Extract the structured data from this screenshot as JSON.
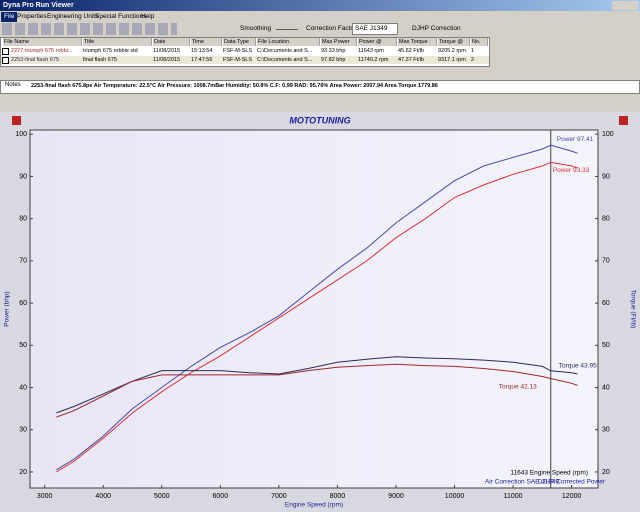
{
  "window": {
    "title": "Dyna Pro Run Viewer"
  },
  "menu": [
    "File",
    "Properties",
    "Engineering Units",
    "Special Functions",
    "Help"
  ],
  "toolbar": {
    "smoothing": "Smoothing",
    "correction_label": "Correction Factor",
    "correction_value": "SAE J1349",
    "djhp": "DJHP Correction"
  },
  "table": {
    "headers": [
      "File Name",
      "Title",
      "Date",
      "Time",
      "Data Type",
      "File Location",
      "Max Power",
      "Power @",
      "Max Torque",
      "Torque @",
      "No."
    ],
    "rows": [
      [
        "2227-triumph 675 robbi...",
        "triumph 675 robbie std",
        "11/08/2015",
        "15:13:54",
        "FSF-M-SLS",
        "C:\\Documents and S...",
        "93.33 bhp",
        "11643 rpm",
        "45.82 Ft/lb",
        "9205.2 rpm",
        "1"
      ],
      [
        "2253-final flash 675",
        "final flash 675",
        "11/08/2015",
        "17:47:56",
        "FSF-M-SLS",
        "C:\\Documents and S...",
        "97.82 bhp",
        "11740.2 rpm",
        "47.37 Ft/lb",
        "9317.1 rpm",
        "2"
      ]
    ]
  },
  "notes": {
    "label": "Notes",
    "info": "2253-final flash 675.8pe   Air Temperature: 22.5°C   Air Pressure: 1008.7mBar   Humidity: 50.8%   C.F: 0.99   RAD: 95.76%   Area Power: 2007.94   Area Torque 1779.86"
  },
  "chart_data": {
    "type": "line",
    "title": "MOTOTUNING",
    "xlabel": "Engine Speed (rpm)",
    "ylabel": "Power (bhp)",
    "y2label": "Torque (Ft/lb)",
    "x": [
      3200,
      3500,
      4000,
      4500,
      5000,
      5500,
      6000,
      6500,
      7000,
      7500,
      8000,
      8500,
      9000,
      9500,
      10000,
      10500,
      11000,
      11500,
      11643,
      12000,
      12100
    ],
    "xlim": [
      2750,
      12450
    ],
    "ylim": [
      16.2,
      101
    ],
    "y2lim": [
      16.2,
      101
    ],
    "xticks": [
      3000,
      4000,
      5000,
      6000,
      7000,
      8000,
      9000,
      10000,
      11000,
      12000
    ],
    "yticks": [
      20,
      30,
      40,
      50,
      60,
      70,
      80,
      90,
      100
    ],
    "y2ticks": [
      20,
      30,
      40,
      50,
      60,
      70,
      80,
      90,
      100
    ],
    "cursor": 11643,
    "series": [
      {
        "name": "Power 97.41",
        "color": "#4a4aa8",
        "values": [
          20.5,
          23,
          28.5,
          35,
          40,
          45,
          49.5,
          53,
          57,
          62.5,
          68,
          73,
          79,
          84,
          89,
          92.5,
          94.5,
          96.5,
          97.41,
          96,
          95.5
        ]
      },
      {
        "name": "Power 93.33",
        "color": "#e03030",
        "values": [
          20,
          22.5,
          28,
          34,
          39,
          43.5,
          47.5,
          52,
          56.5,
          61,
          65.5,
          70,
          75.5,
          80,
          85,
          88,
          90.5,
          92.5,
          93.33,
          92.5,
          92
        ]
      },
      {
        "name": "Torque 43.95",
        "color": "#2a2a5a",
        "axis": "y2",
        "values": [
          34,
          35.5,
          38.5,
          41.5,
          44,
          44,
          44,
          43.5,
          43.2,
          44.5,
          46,
          46.7,
          47.3,
          47,
          46.8,
          46.5,
          46,
          45,
          43.95,
          43.5,
          43.2
        ]
      },
      {
        "name": "Torque 42.13",
        "color": "#a02828",
        "axis": "y2",
        "values": [
          33,
          34.5,
          38,
          41.5,
          43,
          43,
          43,
          43,
          43,
          44,
          44.8,
          45.2,
          45.5,
          45.2,
          45,
          44.5,
          43.8,
          42.6,
          42.13,
          41,
          40.5
        ]
      }
    ],
    "annotations": [
      "11643 Engine Speed (rpm)",
      "Air Correction SAE J1349",
      "DJHP Corrected Power"
    ]
  }
}
